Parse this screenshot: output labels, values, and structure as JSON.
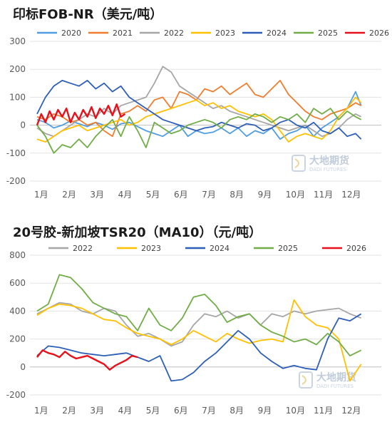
{
  "chart_data": [
    {
      "type": "line",
      "title": "印标FOB-NR（美元/吨）",
      "ylim": [
        -200,
        300
      ],
      "yticks": [
        -200,
        -100,
        0,
        100,
        200,
        300
      ],
      "categories": [
        "1月",
        "2月",
        "3月",
        "4月",
        "5月",
        "6月",
        "7月",
        "8月",
        "9月",
        "10月",
        "11月",
        "12月"
      ],
      "legend_position": "top",
      "grid": true,
      "watermark": {
        "name": "大地期货",
        "sub": "DADI FUTURES"
      },
      "series": [
        {
          "name": "2020",
          "color": "#4f9ee3",
          "x": [
            0,
            0.3,
            0.6,
            0.9,
            1.2,
            1.5,
            1.8,
            2.1,
            2.4,
            2.7,
            3.0,
            3.3,
            3.6,
            3.9,
            4.2,
            4.5,
            4.8,
            5.1,
            5.4,
            5.7,
            6.0,
            6.3,
            6.6,
            6.9,
            7.2,
            7.5,
            7.8,
            8.1,
            8.4,
            8.7,
            9.0,
            9.3,
            9.6,
            9.9,
            10.2,
            10.5,
            10.8,
            11.1,
            11.4,
            11.6
          ],
          "y": [
            20,
            10,
            -10,
            0,
            15,
            5,
            -5,
            10,
            0,
            -15,
            5,
            10,
            -5,
            -20,
            -30,
            -40,
            -20,
            0,
            -40,
            -20,
            -30,
            -25,
            -10,
            -30,
            -10,
            -40,
            -20,
            -30,
            -10,
            -50,
            -30,
            -20,
            0,
            -40,
            -10,
            10,
            30,
            60,
            120,
            70
          ]
        },
        {
          "name": "2021",
          "color": "#f07d2e",
          "x": [
            0,
            0.3,
            0.6,
            0.9,
            1.2,
            1.5,
            1.8,
            2.1,
            2.4,
            2.7,
            3.0,
            3.3,
            3.6,
            3.9,
            4.2,
            4.5,
            4.8,
            5.1,
            5.4,
            5.7,
            6.0,
            6.3,
            6.6,
            6.9,
            7.2,
            7.5,
            7.8,
            8.1,
            8.4,
            8.7,
            9.0,
            9.3,
            9.6,
            9.9,
            10.2,
            10.5,
            10.8,
            11.1,
            11.4,
            11.6
          ],
          "y": [
            30,
            20,
            40,
            30,
            10,
            20,
            0,
            10,
            -20,
            -40,
            40,
            50,
            70,
            50,
            90,
            100,
            60,
            120,
            110,
            90,
            130,
            120,
            140,
            110,
            130,
            150,
            110,
            100,
            130,
            160,
            110,
            80,
            50,
            30,
            20,
            40,
            50,
            60,
            80,
            70
          ]
        },
        {
          "name": "2022",
          "color": "#a6a6a6",
          "x": [
            0,
            0.3,
            0.6,
            0.9,
            1.2,
            1.5,
            1.8,
            2.1,
            2.4,
            2.7,
            3.0,
            3.3,
            3.6,
            3.9,
            4.2,
            4.5,
            4.8,
            5.1,
            5.4,
            5.7,
            6.0,
            6.3,
            6.6,
            6.9,
            7.2,
            7.5,
            7.8,
            8.1,
            8.4,
            8.7,
            9.0,
            9.3,
            9.6,
            9.9,
            10.2,
            10.5,
            10.8,
            11.1,
            11.4,
            11.6
          ],
          "y": [
            -10,
            -30,
            -40,
            -20,
            0,
            20,
            40,
            30,
            60,
            40,
            70,
            80,
            90,
            100,
            150,
            210,
            190,
            140,
            120,
            100,
            80,
            60,
            70,
            50,
            40,
            30,
            20,
            10,
            0,
            -10,
            -20,
            -10,
            0,
            -20,
            -40,
            -30,
            -10,
            20,
            40,
            30
          ]
        },
        {
          "name": "2023",
          "color": "#ffc000",
          "x": [
            0,
            0.3,
            0.6,
            0.9,
            1.2,
            1.5,
            1.8,
            2.1,
            2.4,
            2.7,
            3.0,
            3.3,
            3.6,
            3.9,
            4.2,
            4.5,
            4.8,
            5.1,
            5.4,
            5.7,
            6.0,
            6.3,
            6.6,
            6.9,
            7.2,
            7.5,
            7.8,
            8.1,
            8.4,
            8.7,
            9.0,
            9.3,
            9.6,
            9.9,
            10.2,
            10.5,
            10.8,
            11.1,
            11.4,
            11.6
          ],
          "y": [
            -50,
            -60,
            -40,
            -20,
            -10,
            0,
            -20,
            -10,
            0,
            10,
            20,
            0,
            10,
            30,
            40,
            50,
            60,
            70,
            80,
            90,
            70,
            80,
            60,
            70,
            50,
            40,
            30,
            40,
            20,
            -20,
            -60,
            -40,
            -30,
            -40,
            -50,
            -20,
            30,
            60,
            100,
            80
          ]
        },
        {
          "name": "2024",
          "color": "#2e5fb8",
          "x": [
            0,
            0.3,
            0.6,
            0.9,
            1.2,
            1.5,
            1.8,
            2.1,
            2.4,
            2.7,
            3.0,
            3.3,
            3.6,
            3.9,
            4.2,
            4.5,
            4.8,
            5.1,
            5.4,
            5.7,
            6.0,
            6.3,
            6.6,
            6.9,
            7.2,
            7.5,
            7.8,
            8.1,
            8.4,
            8.7,
            9.0,
            9.3,
            9.6,
            9.9,
            10.2,
            10.5,
            10.8,
            11.1,
            11.4,
            11.6
          ],
          "y": [
            40,
            100,
            140,
            160,
            150,
            140,
            160,
            130,
            150,
            120,
            140,
            100,
            80,
            60,
            40,
            20,
            10,
            0,
            -10,
            -20,
            -10,
            -5,
            10,
            0,
            -10,
            5,
            0,
            -20,
            -10,
            10,
            20,
            0,
            -10,
            10,
            -20,
            -30,
            -10,
            -40,
            -30,
            -50
          ]
        },
        {
          "name": "2025",
          "color": "#70ad47",
          "x": [
            0,
            0.3,
            0.6,
            0.9,
            1.2,
            1.5,
            1.8,
            2.1,
            2.4,
            2.7,
            3.0,
            3.3,
            3.6,
            3.9,
            4.2,
            4.5,
            4.8,
            5.1,
            5.4,
            5.7,
            6.0,
            6.3,
            6.6,
            6.9,
            7.2,
            7.5,
            7.8,
            8.1,
            8.4,
            8.7,
            9.0,
            9.3,
            9.6,
            9.9,
            10.2,
            10.5,
            10.8,
            11.1,
            11.4,
            11.6
          ],
          "y": [
            0,
            -40,
            -100,
            -70,
            -80,
            -50,
            -80,
            -40,
            -10,
            20,
            -40,
            30,
            -20,
            -80,
            10,
            -10,
            -30,
            -20,
            0,
            10,
            20,
            10,
            -10,
            20,
            30,
            20,
            40,
            30,
            10,
            30,
            20,
            40,
            10,
            60,
            40,
            60,
            20,
            50,
            30,
            20
          ]
        },
        {
          "name": "2026",
          "color": "#e8101a",
          "x": [
            0,
            0.15,
            0.3,
            0.45,
            0.6,
            0.75,
            0.9,
            1.05,
            1.2,
            1.35,
            1.5,
            1.65,
            1.8,
            1.95,
            2.1,
            2.25,
            2.4,
            2.55,
            2.7,
            2.85,
            3.0,
            3.15
          ],
          "y": [
            0,
            40,
            10,
            50,
            20,
            55,
            30,
            60,
            10,
            45,
            20,
            55,
            30,
            65,
            25,
            60,
            40,
            70,
            35,
            75,
            30,
            40
          ]
        }
      ]
    },
    {
      "type": "line",
      "title": "20号胶-新加坡TSR20（MA10）（元/吨）",
      "ylim": [
        -200,
        800
      ],
      "yticks": [
        -200,
        0,
        200,
        400,
        600,
        800
      ],
      "categories": [
        "1月",
        "2月",
        "3月",
        "4月",
        "5月",
        "6月",
        "7月",
        "8月",
        "9月",
        "10月",
        "11月",
        "12月"
      ],
      "legend_position": "top",
      "grid": true,
      "watermark": {
        "name": "大地期货",
        "sub": "DADI FUTURES"
      },
      "series": [
        {
          "name": "2022",
          "color": "#a6a6a6",
          "x": [
            0,
            0.4,
            0.8,
            1.2,
            1.6,
            2.0,
            2.4,
            2.8,
            3.2,
            3.6,
            4.0,
            4.4,
            4.8,
            5.2,
            5.6,
            6.0,
            6.4,
            6.8,
            7.2,
            7.6,
            8.0,
            8.4,
            8.8,
            9.2,
            9.6,
            10.0,
            10.4,
            10.8,
            11.2,
            11.6
          ],
          "y": [
            380,
            420,
            460,
            450,
            400,
            380,
            420,
            400,
            300,
            220,
            240,
            200,
            150,
            180,
            300,
            380,
            360,
            400,
            350,
            380,
            300,
            380,
            360,
            400,
            380,
            400,
            410,
            420,
            380,
            350
          ]
        },
        {
          "name": "2023",
          "color": "#ffc000",
          "x": [
            0,
            0.4,
            0.8,
            1.2,
            1.6,
            2.0,
            2.4,
            2.8,
            3.2,
            3.6,
            4.0,
            4.4,
            4.8,
            5.2,
            5.6,
            6.0,
            6.4,
            6.8,
            7.2,
            7.6,
            8.0,
            8.4,
            8.8,
            9.2,
            9.6,
            10.0,
            10.4,
            10.8,
            11.2,
            11.6
          ],
          "y": [
            370,
            420,
            450,
            440,
            420,
            380,
            340,
            330,
            280,
            240,
            220,
            200,
            160,
            200,
            260,
            220,
            180,
            240,
            200,
            170,
            190,
            200,
            180,
            480,
            360,
            300,
            280,
            200,
            -100,
            20
          ]
        },
        {
          "name": "2024",
          "color": "#2e5fb8",
          "x": [
            0,
            0.4,
            0.8,
            1.2,
            1.6,
            2.0,
            2.4,
            2.8,
            3.2,
            3.6,
            4.0,
            4.4,
            4.8,
            5.2,
            5.6,
            6.0,
            6.4,
            6.8,
            7.2,
            7.6,
            8.0,
            8.4,
            8.8,
            9.2,
            9.6,
            10.0,
            10.4,
            10.8,
            11.2,
            11.6
          ],
          "y": [
            80,
            150,
            140,
            120,
            100,
            90,
            80,
            90,
            100,
            70,
            40,
            80,
            -100,
            -90,
            -40,
            40,
            100,
            180,
            260,
            200,
            100,
            40,
            -10,
            10,
            -10,
            -20,
            200,
            350,
            330,
            380
          ]
        },
        {
          "name": "2025",
          "color": "#70ad47",
          "x": [
            0,
            0.4,
            0.8,
            1.2,
            1.6,
            2.0,
            2.4,
            2.8,
            3.2,
            3.6,
            4.0,
            4.4,
            4.8,
            5.2,
            5.6,
            6.0,
            6.4,
            6.8,
            7.2,
            7.6,
            8.0,
            8.4,
            8.8,
            9.2,
            9.6,
            10.0,
            10.4,
            10.8,
            11.2,
            11.6
          ],
          "y": [
            400,
            450,
            660,
            640,
            560,
            460,
            420,
            380,
            360,
            260,
            420,
            300,
            260,
            350,
            500,
            520,
            440,
            320,
            360,
            380,
            300,
            250,
            220,
            180,
            200,
            160,
            240,
            180,
            80,
            120
          ]
        },
        {
          "name": "2026",
          "color": "#e8101a",
          "x": [
            0,
            0.2,
            0.4,
            0.6,
            0.8,
            1.0,
            1.2,
            1.4,
            1.6,
            1.8,
            2.0,
            2.2,
            2.4,
            2.6,
            2.8,
            3.0,
            3.2,
            3.4,
            3.6
          ],
          "y": [
            70,
            120,
            100,
            90,
            70,
            110,
            80,
            60,
            70,
            80,
            60,
            40,
            20,
            -20,
            10,
            30,
            50,
            80,
            70
          ]
        }
      ]
    }
  ]
}
